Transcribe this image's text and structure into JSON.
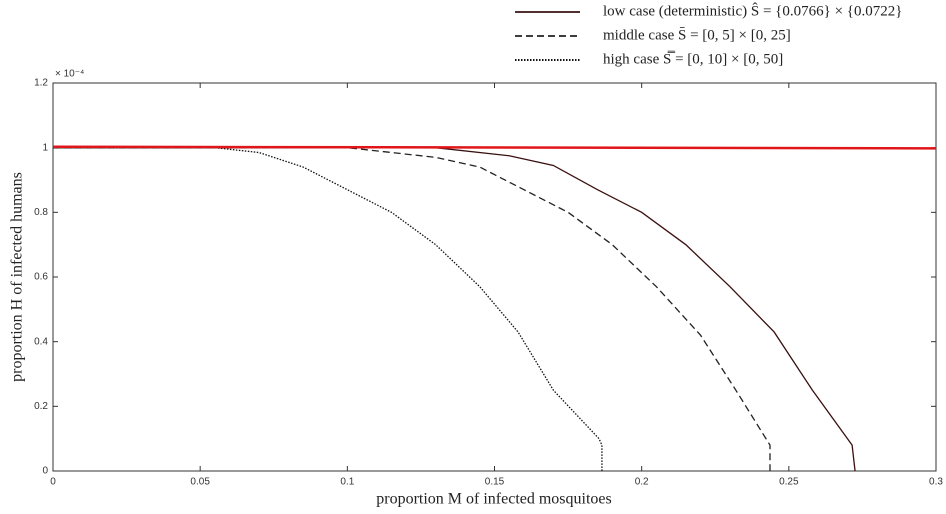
{
  "chart_data": {
    "type": "line",
    "x_label": "proportion M of infected mosquitoes",
    "y_label": "proportion H of infected humans",
    "y_scale_label": "× 10⁻⁴",
    "xlim": [
      0,
      0.3
    ],
    "ylim": [
      0,
      1.2
    ],
    "xticks": [
      0,
      0.05,
      0.1,
      0.15,
      0.2,
      0.25,
      0.3
    ],
    "yticks": [
      0,
      0.2,
      0.4,
      0.6,
      0.8,
      1,
      1.2
    ],
    "series": [
      {
        "name": "low case (deterministic)  Ŝ = {0.0766} × {0.0722}",
        "color": "#3a1010",
        "dash": "solid",
        "x": [
          0,
          0.13,
          0.155,
          0.17,
          0.185,
          0.2,
          0.215,
          0.23,
          0.245,
          0.258,
          0.2715,
          0.2725
        ],
        "values": [
          1,
          1,
          0.975,
          0.945,
          0.87,
          0.8,
          0.7,
          0.57,
          0.43,
          0.25,
          0.08,
          0
        ]
      },
      {
        "name": "middle case  S̄ = [0, 5] × [0, 25]",
        "color": "#222222",
        "dash": "dashed",
        "x": [
          0,
          0.1,
          0.115,
          0.13,
          0.145,
          0.16,
          0.175,
          0.19,
          0.205,
          0.22,
          0.232,
          0.2436,
          0.2436
        ],
        "values": [
          1,
          1,
          0.985,
          0.97,
          0.94,
          0.87,
          0.8,
          0.7,
          0.57,
          0.42,
          0.25,
          0.08,
          0
        ]
      },
      {
        "name": "high case  S̿ = [0, 10] × [0, 50]",
        "color": "#111111",
        "dash": "dotted",
        "x": [
          0,
          0.055,
          0.07,
          0.085,
          0.1,
          0.115,
          0.13,
          0.145,
          0.158,
          0.17,
          0.1855,
          0.1865,
          0.1865
        ],
        "values": [
          1,
          1,
          0.985,
          0.94,
          0.87,
          0.8,
          0.7,
          0.57,
          0.43,
          0.25,
          0.1,
          0.08,
          0
        ]
      },
      {
        "color": "#e0161b",
        "dash": "solid",
        "x": [
          0,
          0.3
        ],
        "values": [
          1.003,
          0.998
        ]
      }
    ]
  }
}
